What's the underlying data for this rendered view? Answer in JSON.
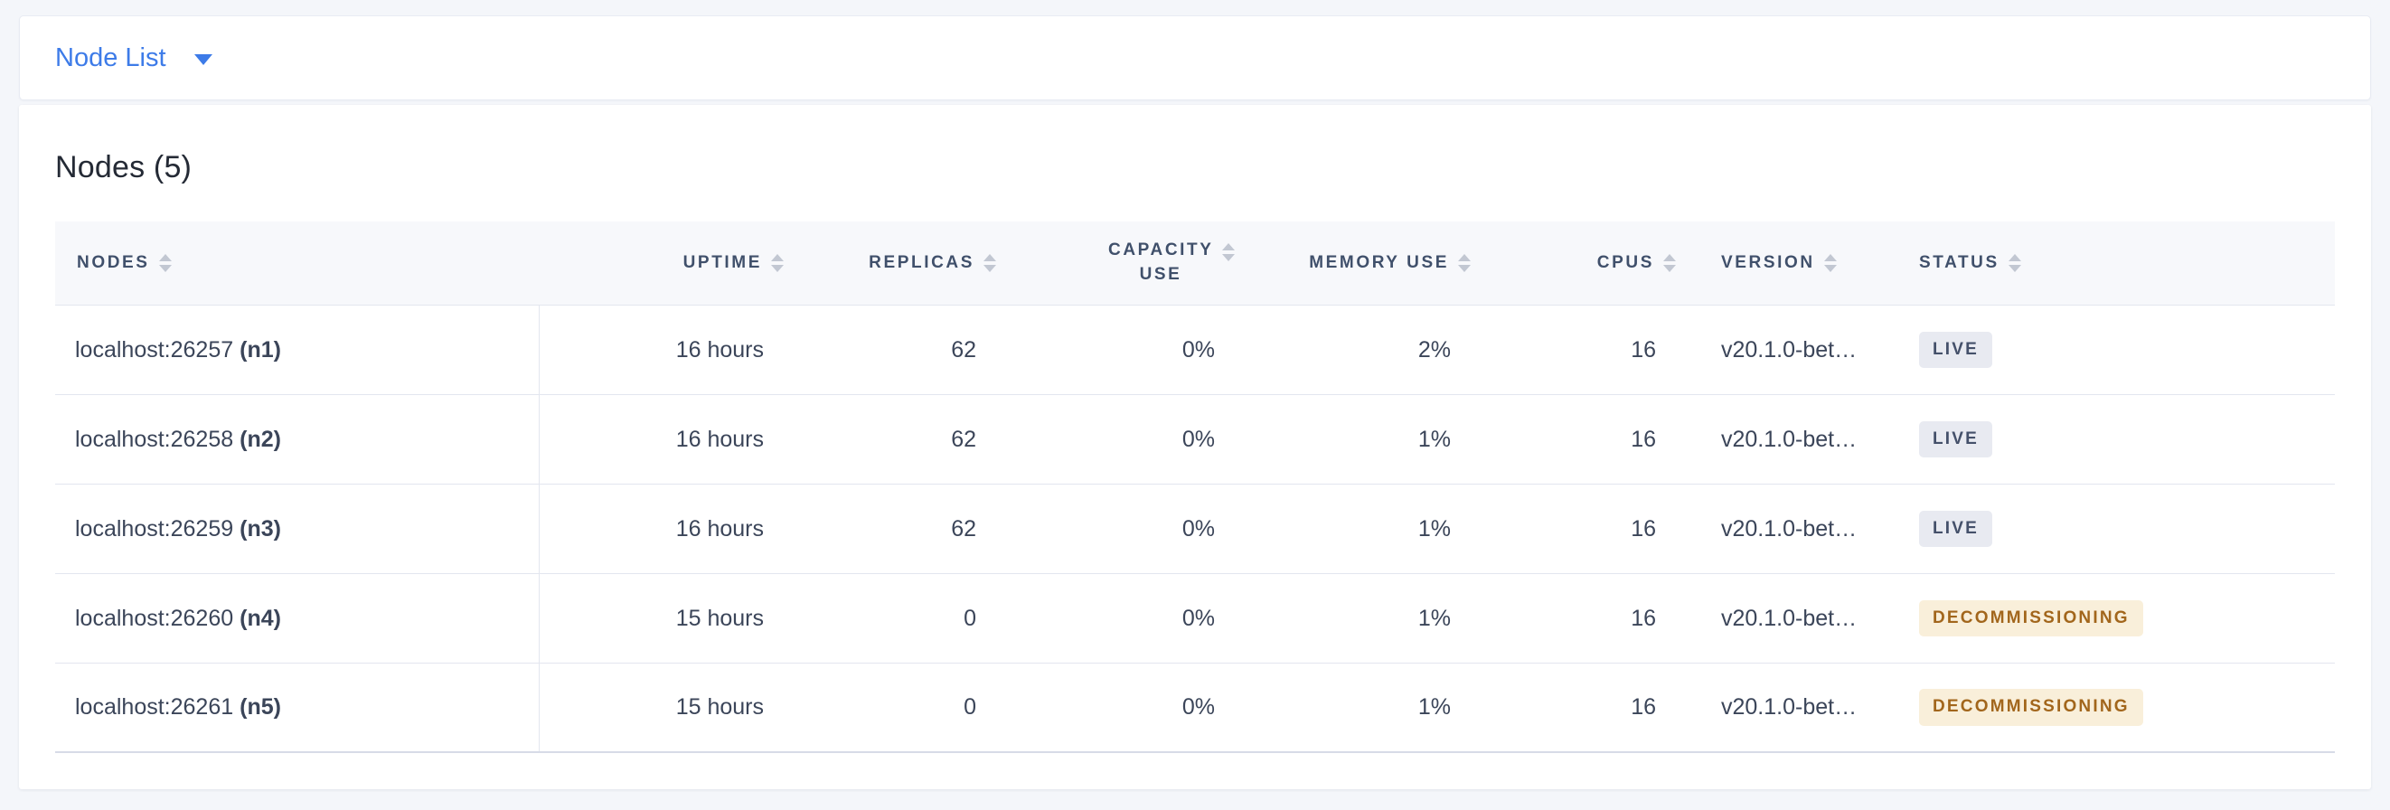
{
  "view_selector": {
    "label": "Node List",
    "accent_color": "#3d7be8"
  },
  "panel": {
    "title": "Nodes (5)"
  },
  "table": {
    "columns": [
      {
        "label": "NODES"
      },
      {
        "label": "UPTIME"
      },
      {
        "label": "REPLICAS"
      },
      {
        "label": "CAPACITY USE"
      },
      {
        "label": "MEMORY USE"
      },
      {
        "label": "CPUS"
      },
      {
        "label": "VERSION"
      },
      {
        "label": "STATUS"
      }
    ],
    "rows": [
      {
        "address": "localhost:26257",
        "node_id": "(n1)",
        "uptime": "16 hours",
        "replicas": "62",
        "capacity_use": "0%",
        "memory_use": "2%",
        "cpus": "16",
        "version": "v20.1.0-bet…",
        "status": "LIVE",
        "status_kind": "live"
      },
      {
        "address": "localhost:26258",
        "node_id": "(n2)",
        "uptime": "16 hours",
        "replicas": "62",
        "capacity_use": "0%",
        "memory_use": "1%",
        "cpus": "16",
        "version": "v20.1.0-bet…",
        "status": "LIVE",
        "status_kind": "live"
      },
      {
        "address": "localhost:26259",
        "node_id": "(n3)",
        "uptime": "16 hours",
        "replicas": "62",
        "capacity_use": "0%",
        "memory_use": "1%",
        "cpus": "16",
        "version": "v20.1.0-bet…",
        "status": "LIVE",
        "status_kind": "live"
      },
      {
        "address": "localhost:26260",
        "node_id": "(n4)",
        "uptime": "15 hours",
        "replicas": "0",
        "capacity_use": "0%",
        "memory_use": "1%",
        "cpus": "16",
        "version": "v20.1.0-bet…",
        "status": "DECOMMISSIONING",
        "status_kind": "decommissioning"
      },
      {
        "address": "localhost:26261",
        "node_id": "(n5)",
        "uptime": "15 hours",
        "replicas": "0",
        "capacity_use": "0%",
        "memory_use": "1%",
        "cpus": "16",
        "version": "v20.1.0-bet…",
        "status": "DECOMMISSIONING",
        "status_kind": "decommissioning"
      }
    ]
  },
  "colors": {
    "live_bg": "#e8eaf1",
    "live_text": "#44506a",
    "decommissioning_bg": "#f9efda",
    "decommissioning_text": "#a2661c"
  }
}
